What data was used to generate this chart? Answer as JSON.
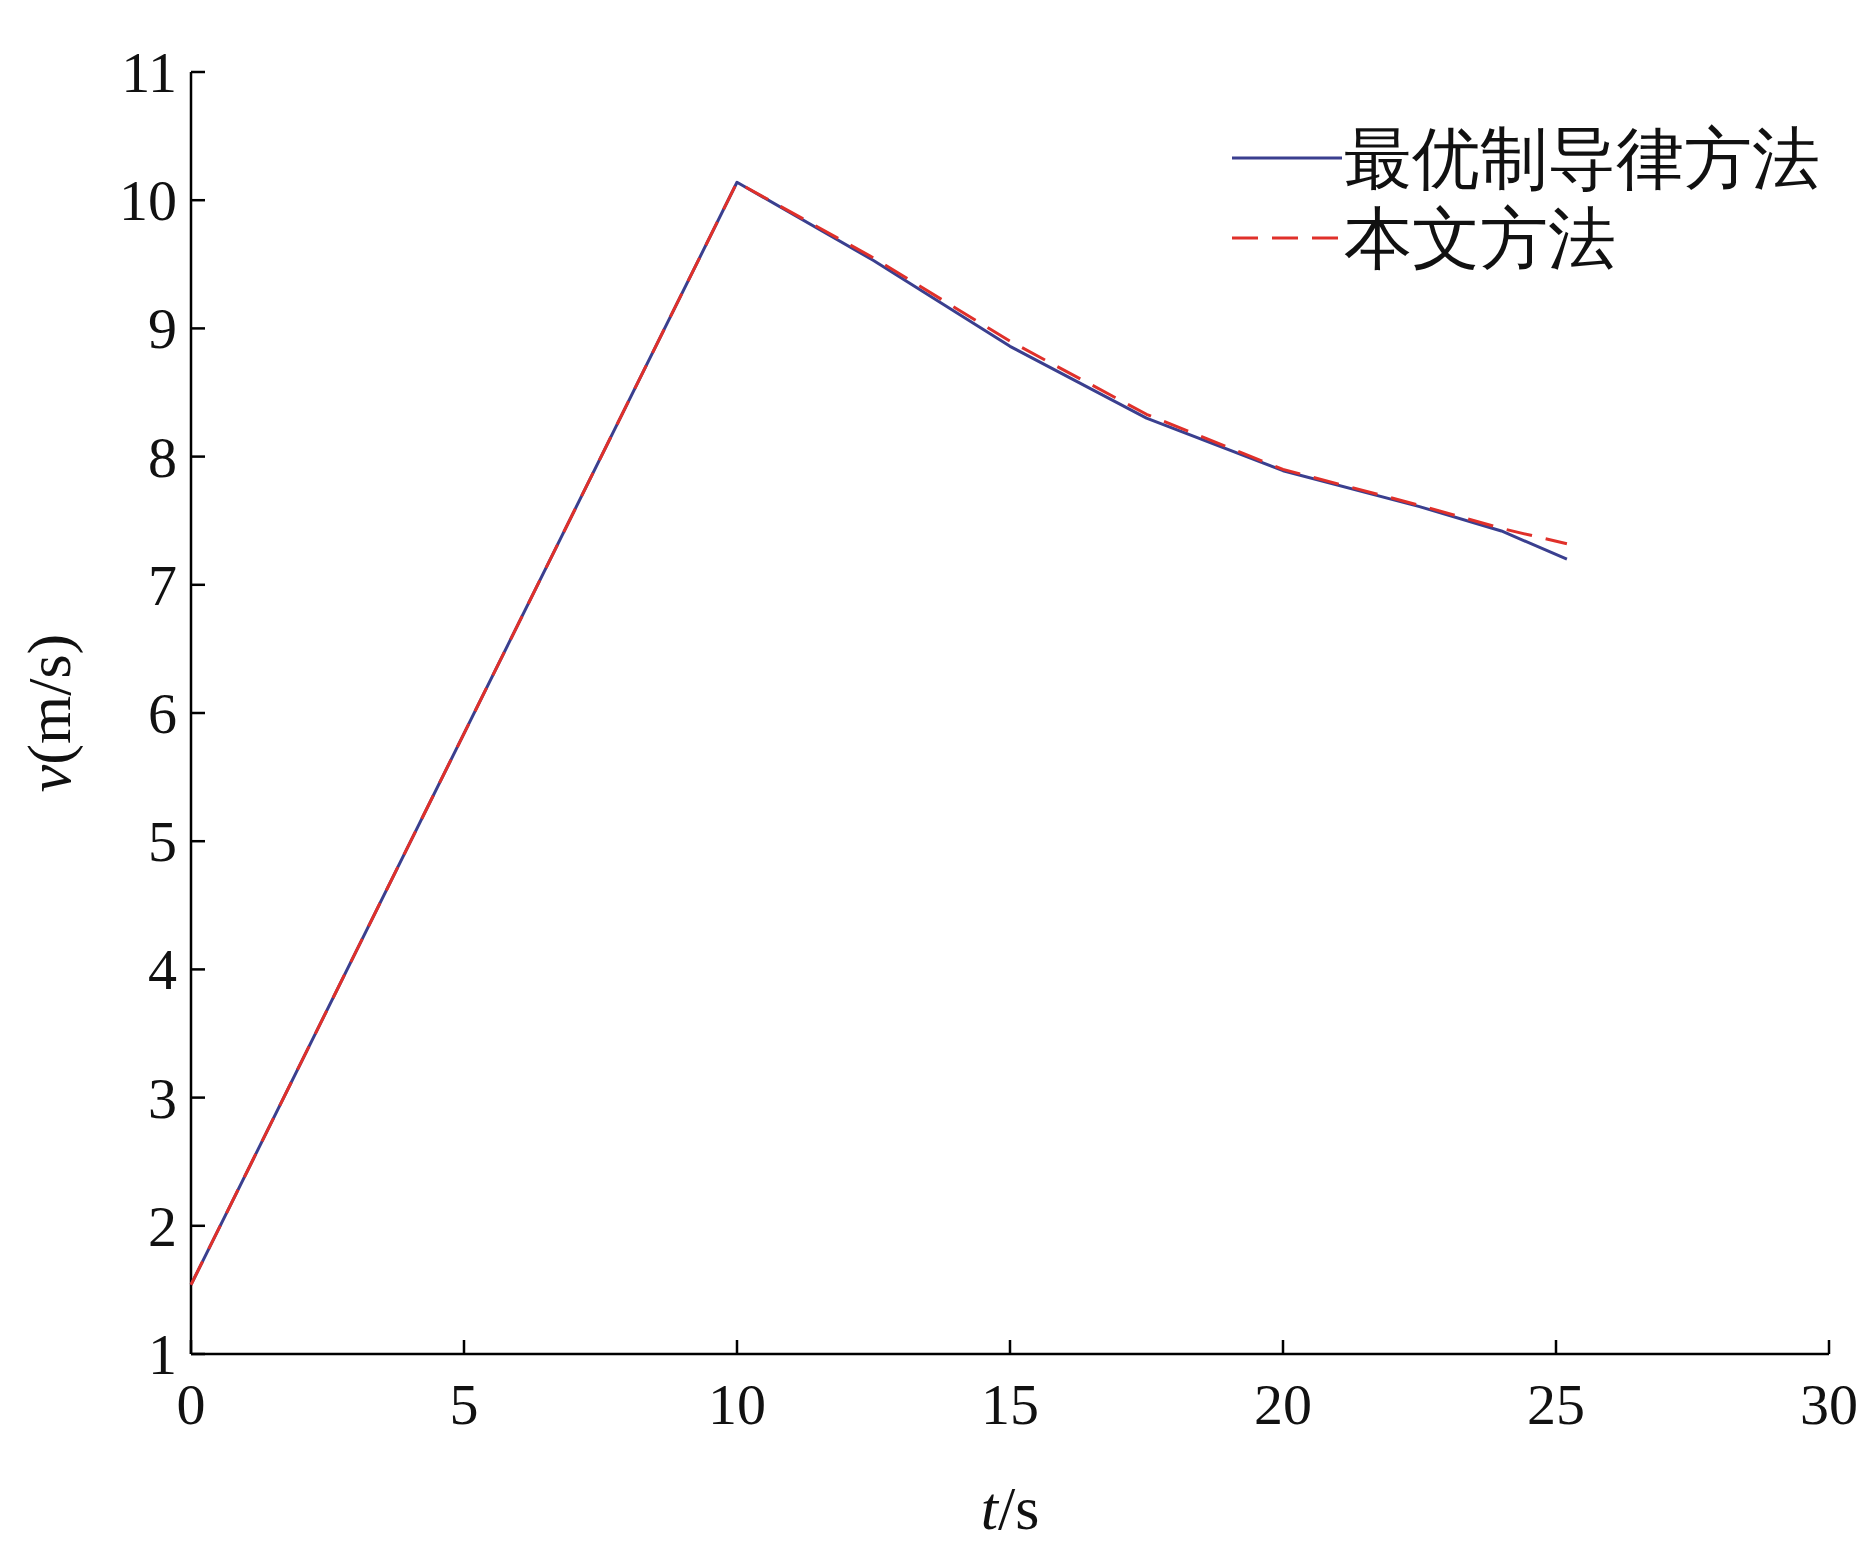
{
  "chart_data": {
    "type": "line",
    "xlabel": "*t*/s",
    "ylabel": "*v*(m/s)",
    "xlim": [
      0,
      30
    ],
    "ylim": [
      1,
      11
    ],
    "xticks": [
      0,
      5,
      10,
      15,
      20,
      25,
      30
    ],
    "yticks": [
      1,
      2,
      3,
      4,
      5,
      6,
      7,
      8,
      9,
      10,
      11
    ],
    "grid": false,
    "legend": "top right",
    "marker": "none",
    "series": [
      {
        "name": "最优制导律方法",
        "color": "#3a3f8f",
        "line_style": "solid",
        "x": [
          0,
          10,
          12.5,
          15,
          17.5,
          20,
          22.5,
          24,
          25.2
        ],
        "values": [
          1.54,
          10.14,
          9.53,
          8.86,
          8.3,
          7.89,
          7.61,
          7.42,
          7.2
        ]
      },
      {
        "name": "本文方法",
        "color": "#e0302a",
        "line_style": "dashed",
        "x": [
          0,
          10,
          12.5,
          15,
          17.5,
          20,
          22.5,
          24,
          25.2
        ],
        "values": [
          1.54,
          10.14,
          9.55,
          8.9,
          8.33,
          7.9,
          7.62,
          7.44,
          7.32
        ]
      }
    ]
  }
}
